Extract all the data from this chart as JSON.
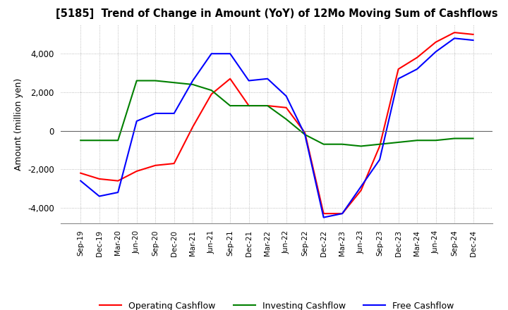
{
  "title": "[5185]  Trend of Change in Amount (YoY) of 12Mo Moving Sum of Cashflows",
  "ylabel": "Amount (million yen)",
  "ylim": [
    -4800,
    5500
  ],
  "yticks": [
    -4000,
    -2000,
    0,
    2000,
    4000
  ],
  "x_labels": [
    "Sep-19",
    "Dec-19",
    "Mar-20",
    "Jun-20",
    "Sep-20",
    "Dec-20",
    "Mar-21",
    "Jun-21",
    "Sep-21",
    "Dec-21",
    "Mar-22",
    "Jun-22",
    "Sep-22",
    "Dec-22",
    "Mar-23",
    "Jun-23",
    "Sep-23",
    "Dec-23",
    "Mar-24",
    "Jun-24",
    "Sep-24",
    "Dec-24"
  ],
  "operating": [
    -2200,
    -2500,
    -2600,
    -2100,
    -1800,
    -1700,
    200,
    1900,
    2700,
    1300,
    1300,
    1200,
    -100,
    -4300,
    -4300,
    -3100,
    -800,
    3200,
    3800,
    4600,
    5100,
    5000
  ],
  "investing": [
    -500,
    -500,
    -500,
    2600,
    2600,
    2500,
    2400,
    2100,
    1300,
    1300,
    1300,
    600,
    -200,
    -700,
    -700,
    -800,
    -700,
    -600,
    -500,
    -500,
    -400,
    -400
  ],
  "free": [
    -2600,
    -3400,
    -3200,
    500,
    900,
    900,
    2600,
    4000,
    4000,
    2600,
    2700,
    1800,
    -200,
    -4500,
    -4300,
    -2900,
    -1500,
    2700,
    3200,
    4100,
    4800,
    4700
  ],
  "operating_color": "#ff0000",
  "investing_color": "#008000",
  "free_color": "#0000ff",
  "background_color": "#ffffff",
  "grid_color": "#aaaaaa"
}
